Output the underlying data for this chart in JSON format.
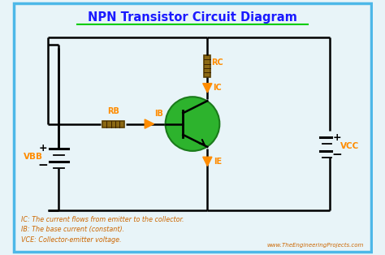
{
  "title": "NPN Transistor Circuit Diagram",
  "title_color": "#1a1aff",
  "title_underline_color": "#00cc00",
  "bg_color": "#e8f4f8",
  "border_color": "#4db8e8",
  "line_color": "#000000",
  "orange_color": "#ff8c00",
  "green_color": "#2db32d",
  "resistor_color": "#8B6914",
  "battery_color": "#000000",
  "annotation_color": "#ff8c00",
  "footnote_color": "#cc6600",
  "website_color": "#cc6600",
  "footnote1": "IC: The current flows from emitter to the collector.",
  "footnote2": "IB: The base current (constant).",
  "footnote3": "VCE: Collector-emitter voltage.",
  "website": "www.TheEngineeringProjects.com",
  "label_RB": "RB",
  "label_RC": "RC",
  "label_IB": "IB",
  "label_IC": "IC",
  "label_IE": "IE",
  "label_VBB": "VBB",
  "label_VCC": "VCC"
}
